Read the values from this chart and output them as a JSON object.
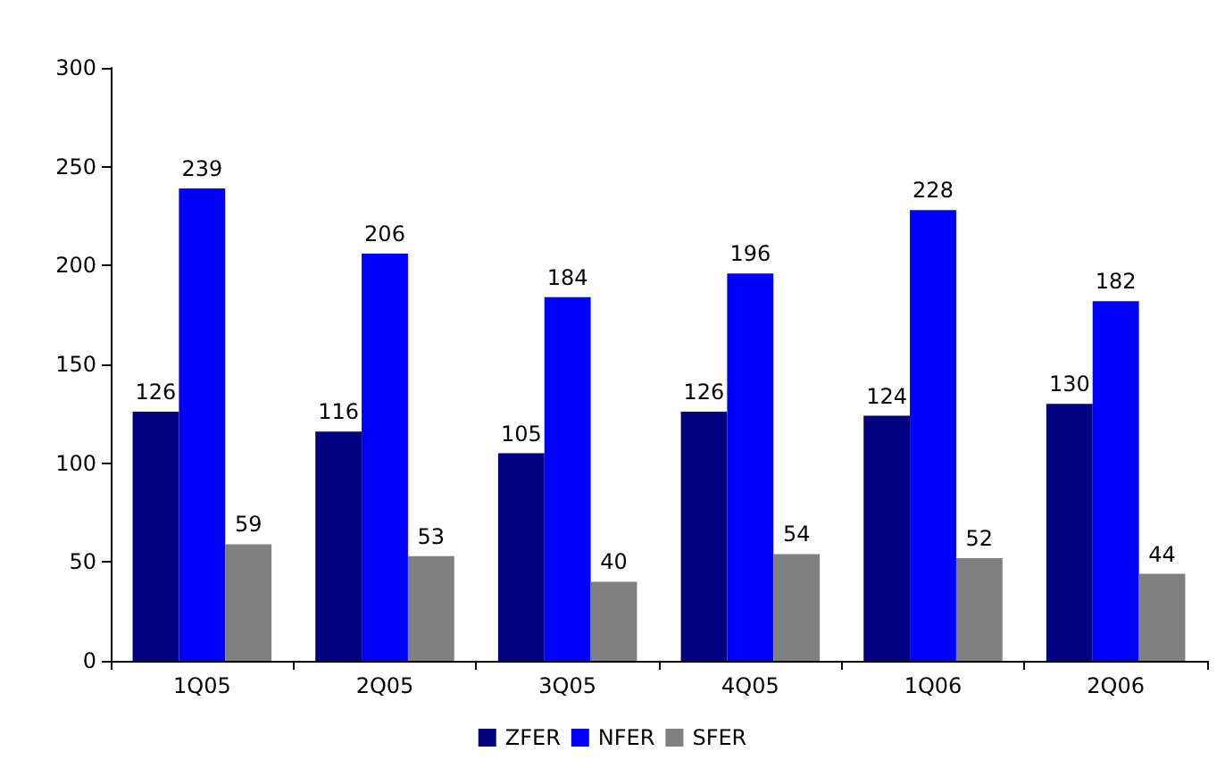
{
  "chart_data": {
    "type": "bar",
    "categories": [
      "1Q05",
      "2Q05",
      "3Q05",
      "4Q05",
      "1Q06",
      "2Q06"
    ],
    "series": [
      {
        "name": "ZFER",
        "color": "#000080",
        "values": [
          126,
          116,
          105,
          126,
          124,
          130
        ]
      },
      {
        "name": "NFER",
        "color": "#0000ff",
        "values": [
          239,
          206,
          184,
          196,
          228,
          182
        ]
      },
      {
        "name": "SFER",
        "color": "#808080",
        "values": [
          59,
          53,
          40,
          54,
          52,
          44
        ]
      }
    ],
    "ylim": [
      0,
      300
    ],
    "yticks": [
      0,
      50,
      100,
      150,
      200,
      250,
      300
    ],
    "grid": false,
    "legend": "bottom",
    "data_labels": true
  }
}
